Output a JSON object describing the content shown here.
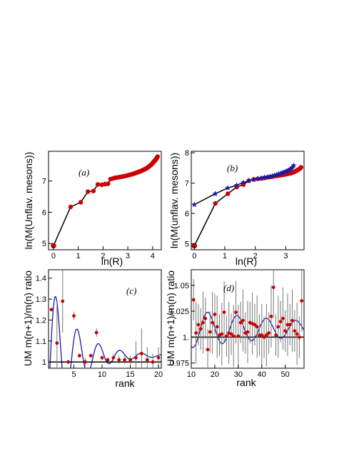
{
  "chart_data": [
    {
      "id": "a",
      "type": "scatter",
      "panel_label": "(a)",
      "xlabel": "ln(R)",
      "ylabel": "ln(M(Unflav. mesons))",
      "xlim": [
        -0.2,
        4.35
      ],
      "ylim": [
        4.8,
        7.95
      ],
      "xticks": [
        0,
        1,
        2,
        3,
        4
      ],
      "yticks": [
        5,
        6,
        7
      ],
      "series": [
        {
          "color": "#cc0000",
          "marker": "circle",
          "x": [
            0,
            0.69,
            1.1,
            1.39,
            1.61,
            1.79,
            1.95,
            2.08,
            2.2,
            2.3,
            2.4,
            2.48,
            2.56,
            2.64,
            2.71,
            2.77,
            2.83,
            2.89,
            2.94,
            3.0,
            3.04,
            3.09,
            3.14,
            3.18,
            3.22,
            3.26,
            3.3,
            3.33,
            3.37,
            3.4,
            3.43,
            3.47,
            3.5,
            3.53,
            3.56,
            3.58,
            3.61,
            3.64,
            3.66,
            3.69,
            3.71,
            3.74,
            3.76,
            3.78,
            3.81,
            3.83,
            3.85,
            3.87,
            3.89,
            3.91,
            3.93,
            3.95,
            3.97,
            3.99,
            4.01,
            4.03,
            4.04,
            4.06,
            4.08,
            4.09,
            4.11,
            4.13,
            4.14,
            4.16,
            4.17,
            4.19,
            4.2
          ],
          "y": [
            4.93,
            6.17,
            6.32,
            6.66,
            6.68,
            6.89,
            6.88,
            6.9,
            6.91,
            7.06,
            7.08,
            7.1,
            7.11,
            7.12,
            7.13,
            7.14,
            7.15,
            7.16,
            7.17,
            7.18,
            7.19,
            7.2,
            7.21,
            7.22,
            7.23,
            7.24,
            7.25,
            7.26,
            7.27,
            7.28,
            7.29,
            7.3,
            7.31,
            7.32,
            7.33,
            7.34,
            7.35,
            7.36,
            7.37,
            7.38,
            7.39,
            7.4,
            7.41,
            7.42,
            7.44,
            7.45,
            7.46,
            7.47,
            7.49,
            7.5,
            7.51,
            7.53,
            7.54,
            7.56,
            7.58,
            7.6,
            7.61,
            7.63,
            7.64,
            7.66,
            7.67,
            7.69,
            7.7,
            7.72,
            7.74,
            7.76,
            7.78
          ]
        }
      ],
      "connect_line": true
    },
    {
      "id": "b",
      "type": "scatter",
      "panel_label": "(b)",
      "xlabel": "ln(R)",
      "ylabel": "ln(M(unflav. mesons))",
      "xlim": [
        -0.1,
        3.6
      ],
      "ylim": [
        4.8,
        8.05
      ],
      "xticks": [
        0,
        1,
        2,
        3
      ],
      "yticks": [
        5,
        6,
        7,
        8
      ],
      "series": [
        {
          "color": "#cc0000",
          "marker": "circle",
          "x": [
            0,
            0.69,
            1.1,
            1.39,
            1.61,
            1.79,
            1.95,
            2.08,
            2.2,
            2.3,
            2.4,
            2.48,
            2.56,
            2.64,
            2.71,
            2.77,
            2.83,
            2.89,
            2.94,
            3.0,
            3.04,
            3.09,
            3.14,
            3.18,
            3.22,
            3.26,
            3.3,
            3.33,
            3.37,
            3.4,
            3.43,
            3.47,
            3.5
          ],
          "y": [
            4.93,
            6.33,
            6.65,
            6.87,
            6.95,
            7.08,
            7.12,
            7.14,
            7.15,
            7.17,
            7.19,
            7.2,
            7.21,
            7.23,
            7.24,
            7.25,
            7.26,
            7.27,
            7.28,
            7.29,
            7.3,
            7.31,
            7.32,
            7.33,
            7.35,
            7.36,
            7.38,
            7.4,
            7.42,
            7.44,
            7.46,
            7.48,
            7.52
          ]
        },
        {
          "color": "#1a1aaa",
          "marker": "star",
          "x": [
            0,
            0.69,
            1.1,
            1.39,
            1.61,
            1.79,
            1.95,
            2.08,
            2.2,
            2.3,
            2.4,
            2.48,
            2.56,
            2.64,
            2.71,
            2.77,
            2.83,
            2.89,
            2.94,
            3.0,
            3.04,
            3.09,
            3.14,
            3.18,
            3.22,
            3.26
          ],
          "y": [
            6.29,
            6.65,
            6.84,
            6.93,
            7.02,
            7.08,
            7.12,
            7.15,
            7.17,
            7.19,
            7.2,
            7.22,
            7.24,
            7.26,
            7.28,
            7.3,
            7.32,
            7.34,
            7.36,
            7.38,
            7.4,
            7.42,
            7.45,
            7.48,
            7.52,
            7.58
          ]
        }
      ],
      "connect_line": true
    },
    {
      "id": "c",
      "type": "scatter",
      "panel_label": "(c)",
      "xlabel": "rank",
      "ylabel": "UM m(n+1)/m(n) ratio",
      "xlim": [
        0.5,
        20.5
      ],
      "ylim": [
        0.97,
        1.44
      ],
      "xticks": [
        5,
        10,
        15,
        20
      ],
      "yticks": [
        1,
        1.1,
        1.2,
        1.3,
        1.4
      ],
      "reference_y": 1,
      "series": [
        {
          "color": "#cc0000",
          "marker": "circle",
          "x": [
            1,
            2,
            3,
            4,
            5,
            6,
            7,
            8,
            9,
            10,
            11,
            12,
            13,
            14,
            15,
            16,
            17,
            18,
            19,
            20
          ],
          "y": [
            1.25,
            1.09,
            1.29,
            1.0,
            1.22,
            1.03,
            1.0,
            1.03,
            1.14,
            1.02,
            1.01,
            1.02,
            1.01,
            1.01,
            1.01,
            1.02,
            1.04,
            1.01,
            1.0,
            1.02
          ],
          "err": [
            0,
            0.2,
            0.15,
            0.01,
            0.02,
            0.01,
            0.02,
            0.01,
            0.02,
            0.01,
            0.01,
            0.02,
            0.02,
            0.02,
            0.02,
            0.08,
            0.12,
            0.06,
            0.04,
            0.05
          ]
        }
      ]
    },
    {
      "id": "d",
      "type": "scatter",
      "panel_label": "(d)",
      "xlabel": "rank",
      "ylabel": "UM m(n+1)/m(n) ratio",
      "xlim": [
        10,
        58
      ],
      "ylim": [
        0.97,
        1.065
      ],
      "xticks": [
        10,
        20,
        30,
        40,
        50
      ],
      "yticks": [
        0.975,
        1,
        1.025,
        1.05
      ],
      "ytick_labels": [
        "0.975",
        "1.",
        "1.025",
        "1.05"
      ],
      "reference_y": 1,
      "series": [
        {
          "color": "#cc0000",
          "marker": "circle",
          "x": [
            11,
            12,
            13,
            14,
            15,
            16,
            17,
            18,
            19,
            20,
            21,
            22,
            23,
            24,
            25,
            26,
            27,
            28,
            29,
            30,
            31,
            32,
            33,
            34,
            35,
            36,
            37,
            38,
            39,
            40,
            41,
            42,
            43,
            44,
            45,
            46,
            47,
            48,
            49,
            50,
            51,
            52,
            53,
            54,
            55,
            56,
            57
          ],
          "y": [
            1.036,
            1.004,
            1.012,
            1.008,
            1.014,
            1.018,
            0.988,
            1.005,
            1.014,
            1.022,
            1.01,
            1.002,
            1.003,
            1.024,
            1.001,
            1.004,
            1.003,
            1.001,
            1.024,
            1.001,
            1.014,
            1.016,
            1.004,
            1.005,
            1.014,
            1.013,
            1.012,
            1.01,
            1.002,
            1.002,
            1.0,
            1.002,
            1.004,
            1.02,
            1.048,
            1.002,
            1.01,
            1.015,
            1.018,
            1.006,
            1.012,
            1.012,
            1.016,
            1.006,
            1.003,
            1.0,
            1.035
          ],
          "err": [
            0.02,
            0.03,
            0.02,
            0.02,
            0.03,
            0.02,
            0.02,
            0.02,
            0.03,
            0.02,
            0.03,
            0.02,
            0.03,
            0.03,
            0.02,
            0.03,
            0.02,
            0.03,
            0.03,
            0.03,
            0.02,
            0.03,
            0.02,
            0.03,
            0.02,
            0.03,
            0.02,
            0.03,
            0.02,
            0.03,
            0.02,
            0.03,
            0.02,
            0.03,
            0.03,
            0.02,
            0.03,
            0.02,
            0.03,
            0.02,
            0.03,
            0.02,
            0.03,
            0.02,
            0.03,
            0.02,
            0.03
          ]
        }
      ]
    }
  ],
  "colors": {
    "fit_curve": "#1a1aaa",
    "points": "#cc0000",
    "stars": "#1a1aaa"
  }
}
